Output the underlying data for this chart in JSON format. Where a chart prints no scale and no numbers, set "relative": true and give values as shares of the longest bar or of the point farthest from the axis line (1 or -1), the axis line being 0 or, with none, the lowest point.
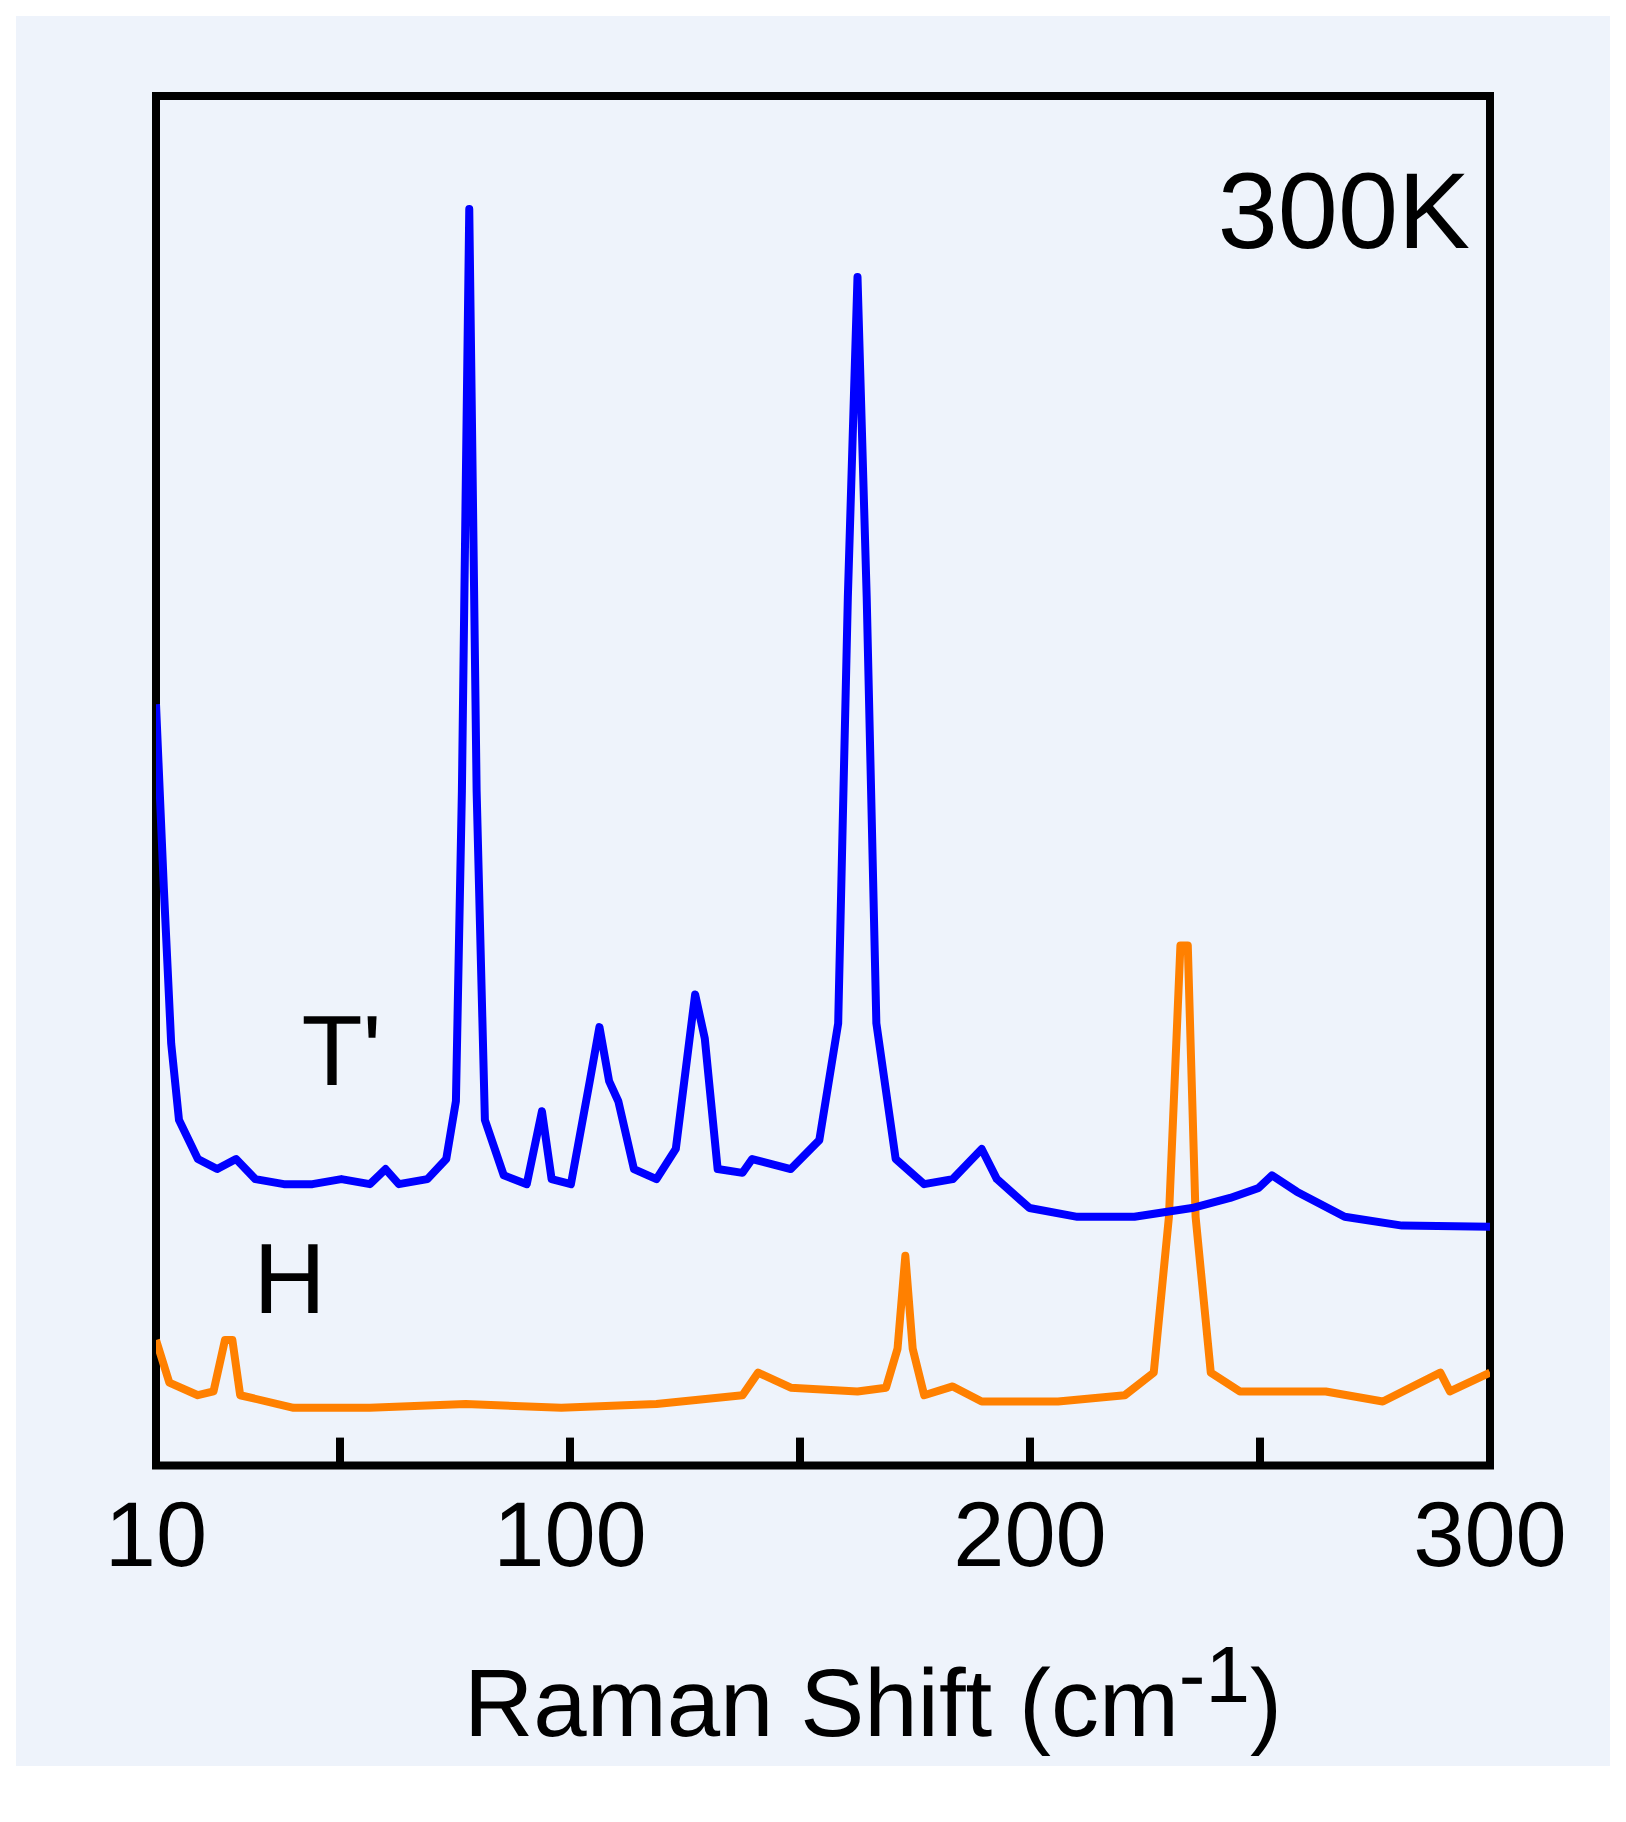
{
  "chart_data": {
    "type": "line",
    "xlabel": "Raman Shift (cm$^{-1}$)",
    "relative": true,
    "xlim": [
      10,
      300
    ],
    "xticks": [
      10,
      {
        "value": 50,
        "label": null
      },
      100,
      {
        "value": 150,
        "label": null
      },
      200,
      {
        "value": 250,
        "label": null
      },
      300
    ],
    "annotations": [
      "300K"
    ],
    "marker": "none",
    "legend": false,
    "series": [
      {
        "name": "T'",
        "color": "#0000ff",
        "x": [
          10,
          11.7,
          13.3,
          15,
          19.1,
          23.3,
          27.4,
          31.6,
          37.8,
          44,
          50.3,
          56.5,
          59.9,
          62.8,
          69,
          73.1,
          75.2,
          76.5,
          78.1,
          79.7,
          81.5,
          85.6,
          90.6,
          93.9,
          96,
          100.2,
          104.3,
          106.4,
          108.5,
          110.5,
          113.9,
          118.8,
          123,
          127.2,
          129.3,
          132.1,
          137.5,
          139.6,
          148,
          154.2,
          158.3,
          160.4,
          162.5,
          164.5,
          166.6,
          170.8,
          177,
          183.2,
          189.5,
          192.8,
          199.9,
          210.3,
          222.7,
          235.2,
          243.5,
          249.7,
          252.6,
          258,
          268.4,
          280.9,
          300
        ],
        "values": [
          0.606,
          0.46,
          0.336,
          0.275,
          0.244,
          0.236,
          0.244,
          0.228,
          0.224,
          0.224,
          0.228,
          0.224,
          0.236,
          0.224,
          0.228,
          0.244,
          0.29,
          0.537,
          1.0,
          0.537,
          0.275,
          0.231,
          0.224,
          0.282,
          0.228,
          0.224,
          0.306,
          0.349,
          0.306,
          0.29,
          0.236,
          0.228,
          0.252,
          0.375,
          0.34,
          0.236,
          0.233,
          0.244,
          0.236,
          0.259,
          0.352,
          0.691,
          0.946,
          0.691,
          0.352,
          0.244,
          0.224,
          0.228,
          0.252,
          0.228,
          0.205,
          0.198,
          0.198,
          0.205,
          0.213,
          0.221,
          0.231,
          0.218,
          0.198,
          0.191,
          0.19
        ]
      },
      {
        "name": "H",
        "color": "#ff8000",
        "x": [
          10,
          12.9,
          19.1,
          22.5,
          25,
          26.6,
          28.3,
          39.9,
          56.5,
          77.3,
          98.1,
          118.8,
          137.5,
          140.9,
          148,
          162.5,
          168.7,
          171.2,
          172.9,
          174.5,
          177,
          183.2,
          189.5,
          206.1,
          220.6,
          226.9,
          230.2,
          232.7,
          234.3,
          236,
          239.3,
          245.6,
          264.3,
          276.7,
          289.2,
          291.3,
          300
        ],
        "values": [
          0.1,
          0.066,
          0.056,
          0.059,
          0.1,
          0.1,
          0.056,
          0.046,
          0.046,
          0.049,
          0.046,
          0.049,
          0.056,
          0.074,
          0.062,
          0.059,
          0.062,
          0.093,
          0.167,
          0.093,
          0.056,
          0.063,
          0.051,
          0.051,
          0.056,
          0.074,
          0.198,
          0.414,
          0.414,
          0.198,
          0.074,
          0.059,
          0.059,
          0.051,
          0.074,
          0.059,
          0.074
        ]
      }
    ]
  }
}
